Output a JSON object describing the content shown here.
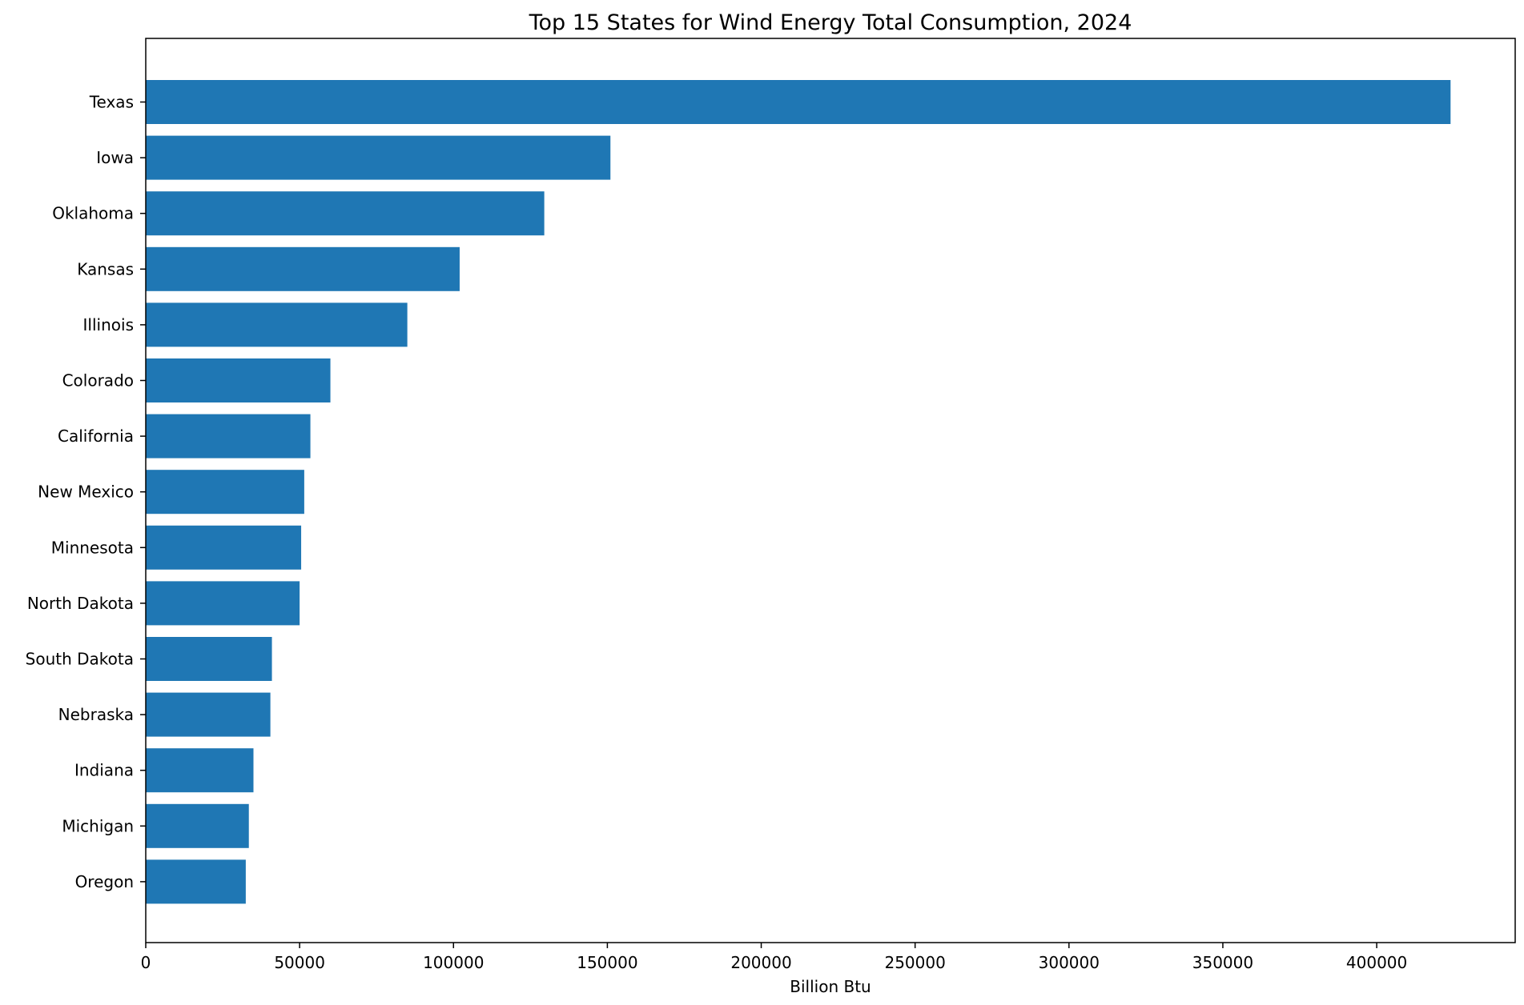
{
  "chart_data": {
    "type": "bar",
    "orientation": "horizontal",
    "title": "Top 15 States for Wind Energy Total Consumption, 2024",
    "xlabel": "Billion Btu",
    "ylabel": "",
    "categories": [
      "Texas",
      "Iowa",
      "Oklahoma",
      "Kansas",
      "Illinois",
      "Colorado",
      "California",
      "New Mexico",
      "Minnesota",
      "North Dakota",
      "South Dakota",
      "Nebraska",
      "Indiana",
      "Michigan",
      "Oregon"
    ],
    "values": [
      424000,
      151000,
      129500,
      102000,
      85000,
      60000,
      53500,
      51500,
      50500,
      50000,
      41000,
      40500,
      35000,
      33500,
      32500
    ],
    "xlim": [
      0,
      445000
    ],
    "xticks": [
      0,
      50000,
      100000,
      150000,
      200000,
      250000,
      300000,
      350000,
      400000
    ],
    "xtick_labels": [
      "0",
      "50000",
      "100000",
      "150000",
      "200000",
      "250000",
      "300000",
      "350000",
      "400000"
    ],
    "grid": false,
    "legend": "none",
    "bar_color": "#1f77b4"
  }
}
